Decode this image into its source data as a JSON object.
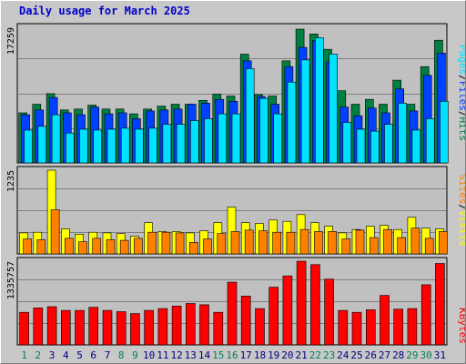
{
  "chart_data": [
    {
      "type": "bar",
      "panel": "hits-files-pages",
      "title": "Daily usage for March 2025",
      "ymax_label": "17259",
      "colors": {
        "hits": "#008040",
        "files": "#0040ff",
        "pages": "#00e0ff"
      },
      "legend": [
        "Pages",
        "Files",
        "Hits"
      ],
      "legend_colors": [
        "#00e0ff",
        "#0040ff",
        "#008040"
      ],
      "categories": [
        "1",
        "2",
        "3",
        "4",
        "5",
        "6",
        "7",
        "8",
        "9",
        "10",
        "11",
        "12",
        "13",
        "14",
        "15",
        "16",
        "17",
        "18",
        "19",
        "20",
        "21",
        "22",
        "23",
        "24",
        "25",
        "26",
        "27",
        "28",
        "29",
        "30",
        "31"
      ],
      "weekend_days": [
        "1",
        "2",
        "8",
        "9",
        "15",
        "16",
        "22",
        "23",
        "29",
        "30"
      ],
      "series": [
        {
          "name": "Hits",
          "values": [
            5200,
            6100,
            7200,
            5500,
            5600,
            6000,
            5600,
            5600,
            5100,
            5600,
            5900,
            6100,
            6100,
            6500,
            7150,
            6950,
            11300,
            7100,
            6950,
            10600,
            13900,
            13400,
            11800,
            7500,
            6100,
            6600,
            6100,
            8600,
            6100,
            10000,
            12750
          ]
        },
        {
          "name": "Files",
          "values": [
            5000,
            5500,
            6800,
            5200,
            5000,
            5800,
            5100,
            5200,
            4600,
            5400,
            5500,
            5600,
            6100,
            6200,
            6600,
            6400,
            10600,
            6900,
            6100,
            10000,
            12000,
            12700,
            10500,
            5800,
            4900,
            5700,
            5200,
            7700,
            5400,
            9100,
            11400
          ]
        },
        {
          "name": "Pages",
          "values": [
            3400,
            3800,
            5000,
            3100,
            3500,
            3400,
            3500,
            3600,
            3500,
            3600,
            4000,
            4000,
            4400,
            4600,
            5100,
            5100,
            9800,
            6700,
            5100,
            8400,
            10700,
            13000,
            11300,
            4200,
            3500,
            3300,
            4000,
            6200,
            3400,
            4600,
            6400
          ]
        }
      ]
    },
    {
      "type": "bar",
      "panel": "visits-sites",
      "ymax_label": "1235",
      "colors": {
        "visits": "#ffff00",
        "sites": "#ff8000"
      },
      "legend": [
        "Sites",
        "Visits"
      ],
      "legend_colors": [
        "#ff8000",
        "#ffff00"
      ],
      "series": [
        {
          "name": "Visits",
          "values": [
            310,
            320,
            1235,
            370,
            290,
            320,
            310,
            300,
            260,
            460,
            330,
            330,
            310,
            340,
            460,
            690,
            460,
            450,
            500,
            480,
            580,
            460,
            410,
            310,
            360,
            410,
            420,
            360,
            540,
            380,
            370
          ]
        },
        {
          "name": "Sites",
          "values": [
            220,
            210,
            650,
            230,
            180,
            230,
            210,
            200,
            230,
            320,
            320,
            310,
            170,
            220,
            300,
            330,
            350,
            340,
            320,
            320,
            360,
            330,
            330,
            220,
            350,
            240,
            360,
            240,
            380,
            230,
            330
          ]
        }
      ]
    },
    {
      "type": "bar",
      "panel": "kbytes",
      "ymax_label": "1335757",
      "colors": {
        "kbytes": "#ff0000"
      },
      "legend": [
        "KBytes"
      ],
      "legend_colors": [
        "#ff0000"
      ],
      "series": [
        {
          "name": "KBytes",
          "values": [
            520000,
            590000,
            610000,
            550000,
            550000,
            600000,
            550000,
            530000,
            500000,
            550000,
            580000,
            620000,
            660000,
            640000,
            520000,
            1000000,
            780000,
            580000,
            920000,
            1100000,
            1335757,
            1280000,
            1050000,
            550000,
            520000,
            560000,
            790000,
            570000,
            580000,
            960000,
            1300000
          ]
        }
      ]
    }
  ]
}
